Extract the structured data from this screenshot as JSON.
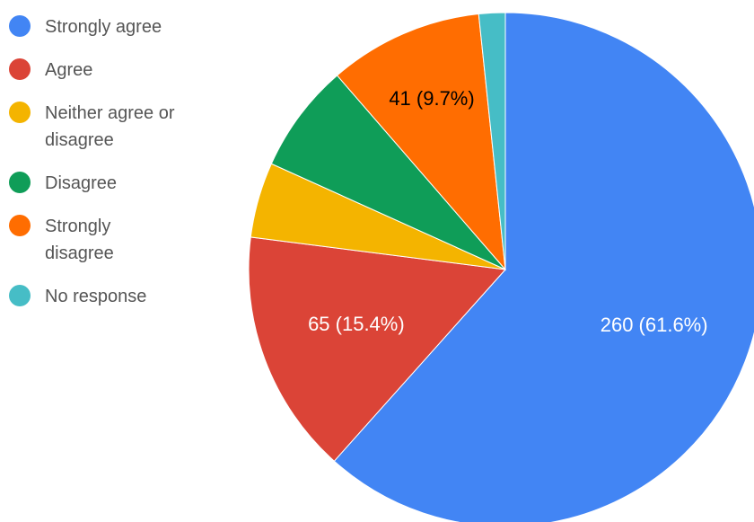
{
  "chart_data": {
    "type": "pie",
    "title": "",
    "slices": [
      {
        "label": "Strongly agree",
        "legend_lines": [
          "Strongly agree"
        ],
        "value": 260,
        "percent": 61.6,
        "data_label": "260 (61.6%)",
        "color": "#4285F4",
        "label_color": "#ffffff"
      },
      {
        "label": "Agree",
        "legend_lines": [
          "Agree"
        ],
        "value": 65,
        "percent": 15.4,
        "data_label": "65 (15.4%)",
        "color": "#DB4437",
        "label_color": "#ffffff"
      },
      {
        "label": "Neither agree or disagree",
        "legend_lines": [
          "Neither agree or",
          "disagree"
        ],
        "value": 20,
        "percent": 4.7,
        "data_label": "",
        "color": "#F4B400",
        "label_color": "#000000"
      },
      {
        "label": "Disagree",
        "legend_lines": [
          "Disagree"
        ],
        "value": 29,
        "percent": 6.9,
        "data_label": "",
        "color": "#0F9D58",
        "label_color": "#ffffff"
      },
      {
        "label": "Strongly disagree",
        "legend_lines": [
          "Strongly",
          "disagree"
        ],
        "value": 41,
        "percent": 9.7,
        "data_label": "41 (9.7%)",
        "color": "#FF6D01",
        "label_color": "#000000"
      },
      {
        "label": "No response",
        "legend_lines": [
          "No response"
        ],
        "value": 7,
        "percent": 1.7,
        "data_label": "",
        "color": "#46BDC6",
        "label_color": "#ffffff"
      }
    ],
    "legend_position": "left"
  }
}
